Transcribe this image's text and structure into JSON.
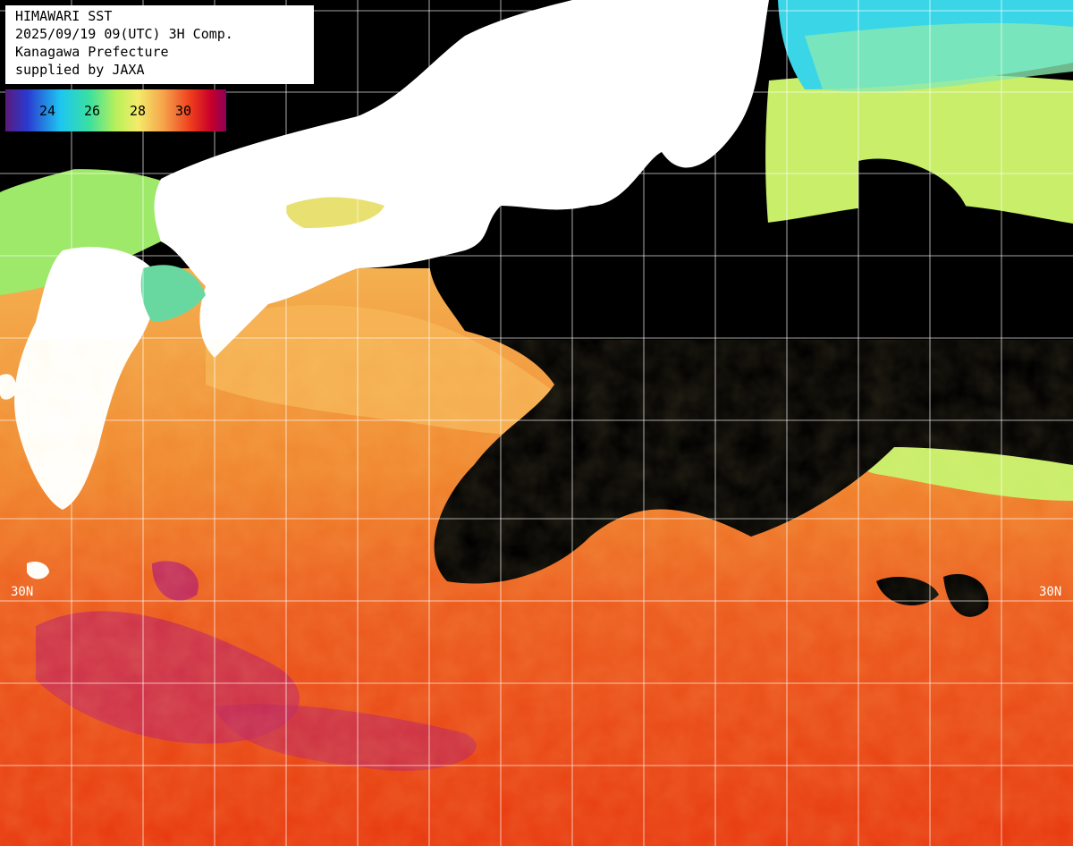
{
  "title": {
    "line1": "HIMAWARI SST",
    "line2": "2025/09/19 09(UTC) 3H Comp.",
    "line3": "Kanagawa Prefecture",
    "line4": "supplied by JAXA"
  },
  "legend": {
    "ticks": [
      "24",
      "26",
      "28",
      "30"
    ],
    "colors": [
      "#5a1a7a",
      "#1f3bd8",
      "#1ec6f0",
      "#3be0a0",
      "#b8f05a",
      "#f4ec6a",
      "#f6a04a",
      "#ee3c1c",
      "#c8002a",
      "#8a005a"
    ]
  },
  "graticule": {
    "lat_label_left": "30N",
    "lat_label_right": "30N"
  },
  "palette": {
    "land": "#ffffff",
    "cloud": "#000000",
    "warm": "#ee4a14",
    "hot": "#c81e5a",
    "mild": "#f4a850",
    "cool": "#b8f06a",
    "cold": "#3ad6e8",
    "grid": "#ffffff"
  }
}
